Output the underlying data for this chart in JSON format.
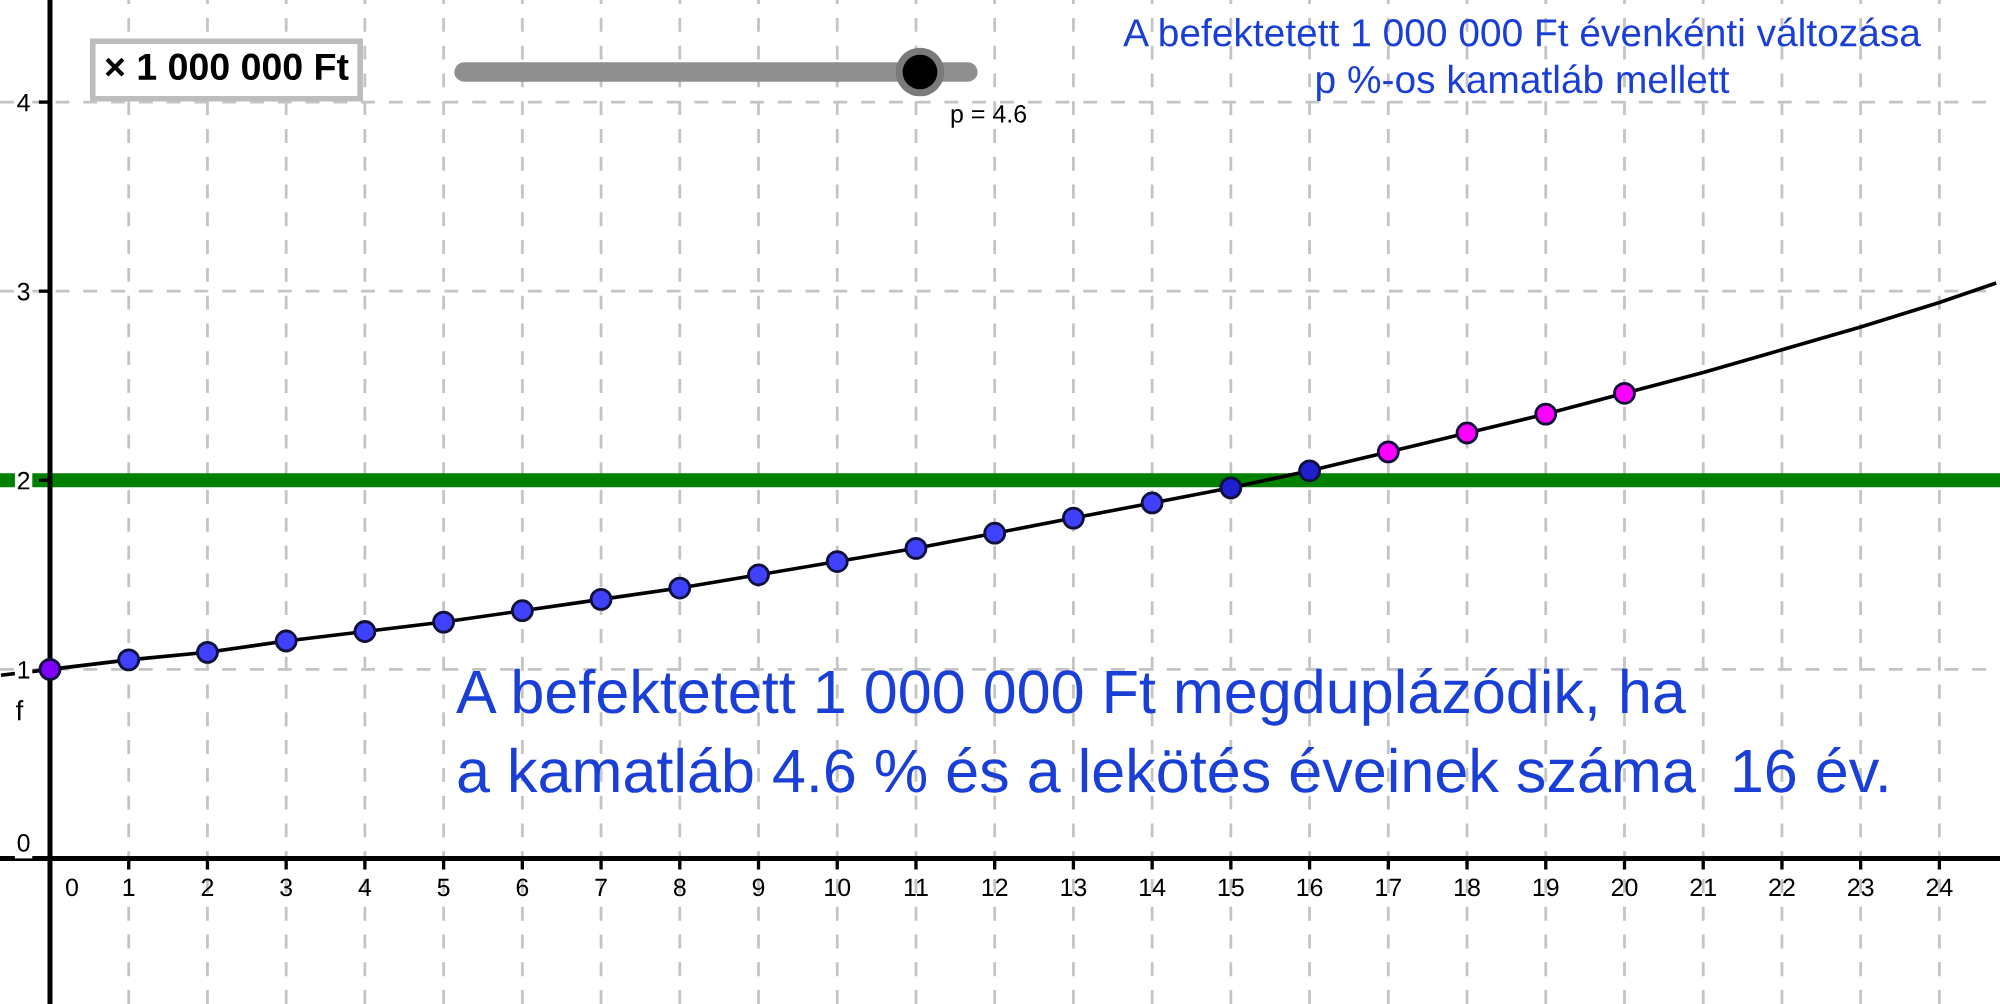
{
  "chart_data": {
    "type": "line",
    "title": "A befektetett 1 000 000 Ft évenkénti változása\np %-os kamatláb mellett",
    "xlim": [
      -0.635,
      24.77
    ],
    "ylim": [
      -0.77,
      4.54
    ],
    "xticks": [
      0,
      1,
      2,
      3,
      4,
      5,
      6,
      7,
      8,
      9,
      10,
      11,
      12,
      13,
      14,
      15,
      16,
      17,
      18,
      19,
      20,
      21,
      22,
      23,
      24
    ],
    "yticks": [
      0,
      1,
      2,
      3,
      4
    ],
    "grid": true,
    "series": [
      {
        "name": "f",
        "color": "#000000",
        "line_style": "solid",
        "x": [
          -0.6,
          0,
          1,
          2,
          3,
          4,
          5,
          6,
          7,
          8,
          9,
          10,
          11,
          12,
          13,
          14,
          15,
          16,
          17,
          18,
          19,
          20,
          21,
          22,
          23,
          24,
          24.7
        ],
        "values": [
          0.97,
          1.0,
          1.05,
          1.09,
          1.15,
          1.2,
          1.25,
          1.31,
          1.37,
          1.43,
          1.5,
          1.57,
          1.64,
          1.72,
          1.8,
          1.88,
          1.96,
          2.05,
          2.15,
          2.25,
          2.35,
          2.46,
          2.57,
          2.69,
          2.81,
          2.94,
          3.04
        ]
      },
      {
        "type": "scatter",
        "marker": "circle",
        "x": [
          0,
          1,
          2,
          3,
          4,
          5,
          6,
          7,
          8,
          9,
          10,
          11,
          12,
          13,
          14,
          15,
          16,
          17,
          18,
          19,
          20
        ],
        "values": [
          1.0,
          1.05,
          1.09,
          1.15,
          1.2,
          1.25,
          1.31,
          1.37,
          1.43,
          1.5,
          1.57,
          1.64,
          1.72,
          1.8,
          1.88,
          1.96,
          2.05,
          2.15,
          2.25,
          2.35,
          2.46
        ],
        "colors": [
          "#8000ff",
          "#4040ff",
          "#4040ff",
          "#4040ff",
          "#4040ff",
          "#4040ff",
          "#4040ff",
          "#4040ff",
          "#4040ff",
          "#4040ff",
          "#4040ff",
          "#4040ff",
          "#4040ff",
          "#4040ff",
          "#4040ff",
          "#2020d0",
          "#2020d0",
          "#ff00ff",
          "#ff00ff",
          "#ff00ff",
          "#ff00ff"
        ]
      }
    ],
    "ref_lines": [
      {
        "axis": "y",
        "value": 2,
        "color": "#008000"
      }
    ],
    "annotations": [
      "× 1 000 000 Ft",
      "p = 4.6",
      "A befektetett 1 000 000 Ft megduplázódik, ha\na kamatláb 4.6 % és a lekötés éveinek száma  16 év."
    ]
  }
}
